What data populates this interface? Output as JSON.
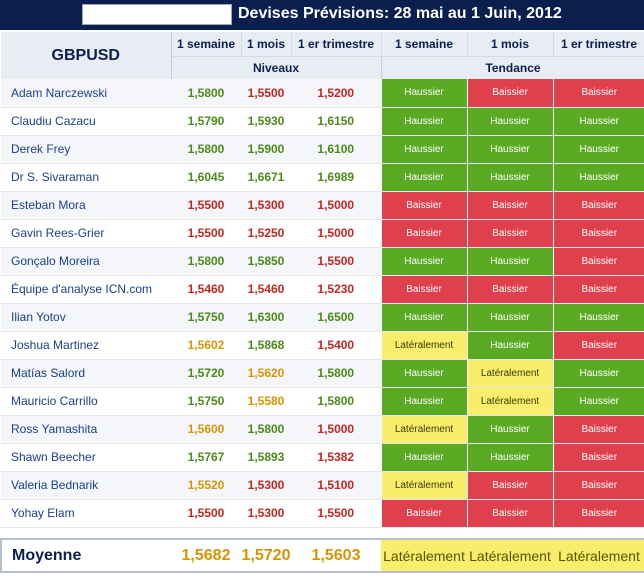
{
  "title": {
    "text": "Devises Prévisions: 28 mai au 1 Juin, 2012"
  },
  "table": {
    "pair": "GBPUSD",
    "columns": [
      "1 semaine",
      "1 mois",
      "1 er trimestre",
      "1 semaine",
      "1 mois",
      "1 er trimestre"
    ],
    "groups": [
      "Niveaux",
      "Tendance"
    ],
    "colors": {
      "green_text": "#4a8a18",
      "red_text": "#c0271f",
      "yellow_text": "#d89400",
      "haussier_bg": "#5aaa24",
      "baissier_bg": "#e0404e",
      "lateral_bg": "#f8ee6c"
    },
    "rows": [
      {
        "name": "Adam Narczewski",
        "levels": [
          "1,5800",
          "1,5500",
          "1,5200"
        ],
        "level_colors": [
          "green",
          "red",
          "red"
        ],
        "trends": [
          "Haussier",
          "Baissier",
          "Baissier"
        ]
      },
      {
        "name": "Claudiu Cazacu",
        "levels": [
          "1,5790",
          "1,5930",
          "1,6150"
        ],
        "level_colors": [
          "green",
          "green",
          "green"
        ],
        "trends": [
          "Haussier",
          "Haussier",
          "Haussier"
        ]
      },
      {
        "name": "Derek Frey",
        "levels": [
          "1,5800",
          "1,5900",
          "1,6100"
        ],
        "level_colors": [
          "green",
          "green",
          "green"
        ],
        "trends": [
          "Haussier",
          "Haussier",
          "Haussier"
        ]
      },
      {
        "name": "Dr S. Sivaraman",
        "levels": [
          "1,6045",
          "1,6671",
          "1,6989"
        ],
        "level_colors": [
          "green",
          "green",
          "green"
        ],
        "trends": [
          "Haussier",
          "Haussier",
          "Haussier"
        ]
      },
      {
        "name": "Esteban Mora",
        "levels": [
          "1,5500",
          "1,5300",
          "1,5000"
        ],
        "level_colors": [
          "red",
          "red",
          "red"
        ],
        "trends": [
          "Baissier",
          "Baissier",
          "Baissier"
        ]
      },
      {
        "name": "Gavin Rees-Grier",
        "levels": [
          "1,5500",
          "1,5250",
          "1,5000"
        ],
        "level_colors": [
          "red",
          "red",
          "red"
        ],
        "trends": [
          "Baissier",
          "Baissier",
          "Baissier"
        ]
      },
      {
        "name": "Gonçalo Moreira",
        "levels": [
          "1,5800",
          "1,5850",
          "1,5500"
        ],
        "level_colors": [
          "green",
          "green",
          "red"
        ],
        "trends": [
          "Haussier",
          "Haussier",
          "Baissier"
        ]
      },
      {
        "name": "Équipe d'analyse ICN.com",
        "levels": [
          "1,5460",
          "1,5460",
          "1,5230"
        ],
        "level_colors": [
          "red",
          "red",
          "red"
        ],
        "trends": [
          "Baissier",
          "Baissier",
          "Baissier"
        ]
      },
      {
        "name": "Ilian Yotov",
        "levels": [
          "1,5750",
          "1,6300",
          "1,6500"
        ],
        "level_colors": [
          "green",
          "green",
          "green"
        ],
        "trends": [
          "Haussier",
          "Haussier",
          "Haussier"
        ]
      },
      {
        "name": "Joshua Martinez",
        "levels": [
          "1,5602",
          "1,5868",
          "1,5400"
        ],
        "level_colors": [
          "yellow",
          "green",
          "red"
        ],
        "trends": [
          "Latéralement",
          "Haussier",
          "Baissier"
        ]
      },
      {
        "name": "Matías Salord",
        "levels": [
          "1,5720",
          "1,5620",
          "1,5800"
        ],
        "level_colors": [
          "green",
          "yellow",
          "green"
        ],
        "trends": [
          "Haussier",
          "Latéralement",
          "Haussier"
        ]
      },
      {
        "name": "Mauricio Carrillo",
        "levels": [
          "1,5750",
          "1,5580",
          "1,5800"
        ],
        "level_colors": [
          "green",
          "yellow",
          "green"
        ],
        "trends": [
          "Haussier",
          "Latéralement",
          "Haussier"
        ]
      },
      {
        "name": "Ross Yamashita",
        "levels": [
          "1,5600",
          "1,5800",
          "1,5000"
        ],
        "level_colors": [
          "yellow",
          "green",
          "red"
        ],
        "trends": [
          "Latéralement",
          "Haussier",
          "Baissier"
        ]
      },
      {
        "name": "Shawn Beecher",
        "levels": [
          "1,5767",
          "1,5893",
          "1,5382"
        ],
        "level_colors": [
          "green",
          "green",
          "red"
        ],
        "trends": [
          "Haussier",
          "Haussier",
          "Baissier"
        ]
      },
      {
        "name": "Valeria Bednarik",
        "levels": [
          "1,5520",
          "1,5300",
          "1,5100"
        ],
        "level_colors": [
          "yellow",
          "red",
          "red"
        ],
        "trends": [
          "Latéralement",
          "Baissier",
          "Baissier"
        ]
      },
      {
        "name": "Yohay Elam",
        "levels": [
          "1,5500",
          "1,5300",
          "1,5500"
        ],
        "level_colors": [
          "red",
          "red",
          "red"
        ],
        "trends": [
          "Baissier",
          "Baissier",
          "Baissier"
        ]
      }
    ],
    "average": {
      "label": "Moyenne",
      "levels": [
        "1,5682",
        "1,5720",
        "1,5603"
      ],
      "trends": [
        "Latéralement",
        "Latéralement",
        "Latéralement"
      ]
    }
  }
}
